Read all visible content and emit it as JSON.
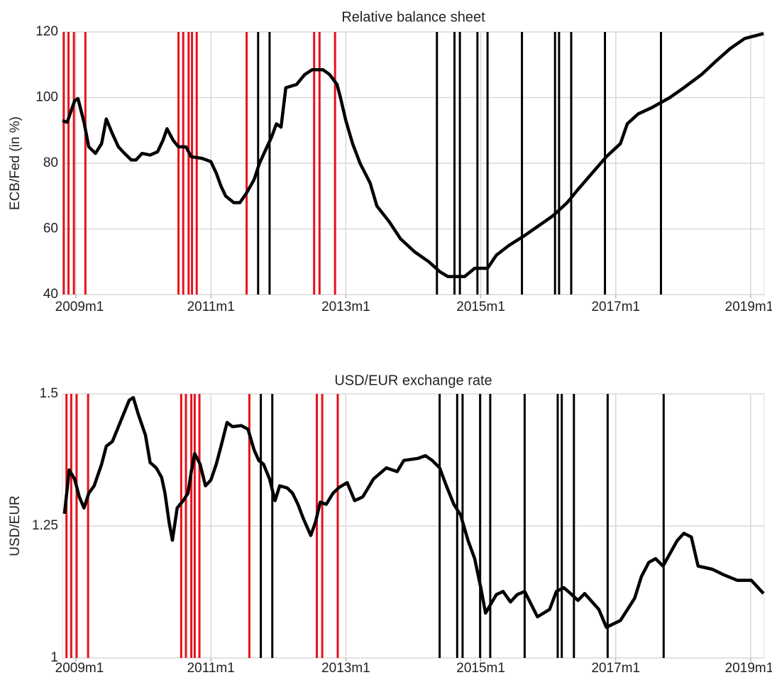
{
  "chart_data": [
    {
      "type": "line",
      "title": "Relative balance sheet",
      "y_label": "ECB/Fed (in %)",
      "color": "#000000",
      "xlim": [
        2008.8,
        2019.2
      ],
      "xticks": [
        {
          "value": 2009,
          "label": "2009m1"
        },
        {
          "value": 2011,
          "label": "2011m1"
        },
        {
          "value": 2013,
          "label": "2013m1"
        },
        {
          "value": 2015,
          "label": "2015m1"
        },
        {
          "value": 2017,
          "label": "2017m1"
        },
        {
          "value": 2019,
          "label": "2019m1"
        }
      ],
      "ylim": [
        40,
        120
      ],
      "yticks": [
        40,
        60,
        80,
        100,
        120
      ],
      "grid": true,
      "x": [
        2008.8,
        2008.87,
        2008.98,
        2009.03,
        2009.12,
        2009.19,
        2009.29,
        2009.38,
        2009.45,
        2009.54,
        2009.63,
        2009.72,
        2009.82,
        2009.89,
        2009.98,
        2010.1,
        2010.21,
        2010.29,
        2010.35,
        2010.44,
        2010.52,
        2010.63,
        2010.71,
        2010.87,
        2011.0,
        2011.08,
        2011.15,
        2011.22,
        2011.34,
        2011.43,
        2011.53,
        2011.64,
        2011.72,
        2011.81,
        2011.9,
        2011.97,
        2012.04,
        2012.11,
        2012.27,
        2012.39,
        2012.5,
        2012.66,
        2012.76,
        2012.87,
        2012.92,
        2013.0,
        2013.1,
        2013.21,
        2013.36,
        2013.46,
        2013.65,
        2013.81,
        2014.02,
        2014.23,
        2014.39,
        2014.51,
        2014.76,
        2014.91,
        2015.1,
        2015.23,
        2015.42,
        2015.65,
        2015.86,
        2016.07,
        2016.28,
        2016.44,
        2016.65,
        2016.86,
        2017.07,
        2017.17,
        2017.33,
        2017.54,
        2017.8,
        2018.01,
        2018.27,
        2018.48,
        2018.7,
        2018.91,
        2019.19
      ],
      "values": [
        93,
        92.5,
        99,
        99.7,
        92.5,
        85,
        83,
        86,
        93.5,
        89,
        85,
        83,
        81,
        81,
        83,
        82.5,
        83.5,
        87,
        90.5,
        87,
        85,
        85,
        82,
        81.5,
        80.5,
        77,
        73,
        70,
        68,
        68,
        71,
        75,
        80,
        84,
        88,
        92,
        91,
        103,
        104,
        107,
        108.5,
        108.5,
        107,
        104,
        100,
        93,
        86,
        80,
        74,
        67,
        62,
        57,
        53,
        50,
        47,
        45.5,
        45.5,
        48,
        48,
        52,
        55,
        58,
        61,
        64,
        68,
        72,
        77,
        82,
        86,
        92,
        95,
        97,
        100,
        103,
        107,
        111,
        115,
        118,
        119.5
      ],
      "events": [
        {
          "color": "#e8101a",
          "x": [
            2008.82,
            2008.89,
            2008.97,
            2009.14,
            2010.52,
            2010.59,
            2010.67,
            2010.72,
            2010.79,
            2011.53,
            2012.53,
            2012.61,
            2012.84
          ]
        },
        {
          "color": "#000000",
          "x": [
            2011.7,
            2011.87,
            2014.35,
            2014.61,
            2014.69,
            2014.95,
            2015.1,
            2015.61,
            2016.1,
            2016.16,
            2016.34,
            2016.84,
            2017.67
          ]
        }
      ]
    },
    {
      "type": "line",
      "title": "USD/EUR exchange rate",
      "y_label": "USD/EUR",
      "color": "#000000",
      "xlim": [
        2008.8,
        2019.2
      ],
      "xticks": [
        {
          "value": 2009,
          "label": "2009m1"
        },
        {
          "value": 2011,
          "label": "2011m1"
        },
        {
          "value": 2013,
          "label": "2013m1"
        },
        {
          "value": 2015,
          "label": "2015m1"
        },
        {
          "value": 2017,
          "label": "2017m1"
        },
        {
          "value": 2019,
          "label": "2019m1"
        }
      ],
      "ylim": [
        1,
        1.5
      ],
      "yticks": [
        1,
        1.25,
        1.5
      ],
      "grid": true,
      "x": [
        2008.83,
        2008.9,
        2008.98,
        2009.05,
        2009.12,
        2009.19,
        2009.27,
        2009.38,
        2009.45,
        2009.54,
        2009.62,
        2009.71,
        2009.79,
        2009.85,
        2009.92,
        2010.03,
        2010.1,
        2010.19,
        2010.27,
        2010.32,
        2010.38,
        2010.43,
        2010.5,
        2010.59,
        2010.66,
        2010.71,
        2010.76,
        2010.84,
        2010.92,
        2011.0,
        2011.08,
        2011.15,
        2011.24,
        2011.32,
        2011.45,
        2011.55,
        2011.64,
        2011.71,
        2011.78,
        2011.87,
        2011.95,
        2012.02,
        2012.13,
        2012.21,
        2012.29,
        2012.37,
        2012.48,
        2012.55,
        2012.62,
        2012.71,
        2012.81,
        2012.9,
        2013.02,
        2013.13,
        2013.25,
        2013.41,
        2013.6,
        2013.76,
        2013.86,
        2014.07,
        2014.18,
        2014.28,
        2014.39,
        2014.49,
        2014.6,
        2014.7,
        2014.81,
        2014.91,
        2015.0,
        2015.07,
        2015.23,
        2015.33,
        2015.44,
        2015.54,
        2015.65,
        2015.84,
        2016.02,
        2016.12,
        2016.23,
        2016.33,
        2016.44,
        2016.54,
        2016.75,
        2016.86,
        2017.07,
        2017.28,
        2017.38,
        2017.49,
        2017.59,
        2017.7,
        2017.91,
        2018.01,
        2018.12,
        2018.22,
        2018.43,
        2018.59,
        2018.8,
        2019.01,
        2019.19
      ],
      "values": [
        1.273,
        1.356,
        1.339,
        1.305,
        1.284,
        1.312,
        1.326,
        1.367,
        1.401,
        1.41,
        1.435,
        1.463,
        1.488,
        1.493,
        1.463,
        1.422,
        1.37,
        1.36,
        1.342,
        1.312,
        1.257,
        1.223,
        1.284,
        1.298,
        1.312,
        1.353,
        1.387,
        1.367,
        1.326,
        1.337,
        1.367,
        1.401,
        1.446,
        1.438,
        1.44,
        1.433,
        1.394,
        1.374,
        1.367,
        1.339,
        1.298,
        1.326,
        1.322,
        1.312,
        1.291,
        1.264,
        1.232,
        1.257,
        1.295,
        1.291,
        1.312,
        1.323,
        1.332,
        1.298,
        1.305,
        1.339,
        1.36,
        1.353,
        1.374,
        1.378,
        1.383,
        1.374,
        1.36,
        1.326,
        1.291,
        1.271,
        1.223,
        1.188,
        1.133,
        1.085,
        1.12,
        1.126,
        1.106,
        1.12,
        1.126,
        1.078,
        1.092,
        1.126,
        1.133,
        1.122,
        1.109,
        1.122,
        1.092,
        1.058,
        1.071,
        1.113,
        1.154,
        1.181,
        1.188,
        1.174,
        1.222,
        1.236,
        1.229,
        1.174,
        1.168,
        1.158,
        1.147,
        1.147,
        1.122
      ],
      "events": [
        {
          "color": "#e8101a",
          "x": [
            2008.86,
            2008.93,
            2009.01,
            2009.18,
            2010.56,
            2010.63,
            2010.71,
            2010.76,
            2010.83,
            2011.57,
            2012.57,
            2012.65,
            2012.88
          ]
        },
        {
          "color": "#000000",
          "x": [
            2011.74,
            2011.91,
            2014.39,
            2014.65,
            2014.73,
            2014.99,
            2015.14,
            2015.65,
            2016.14,
            2016.2,
            2016.38,
            2016.88,
            2017.71
          ]
        }
      ]
    }
  ]
}
